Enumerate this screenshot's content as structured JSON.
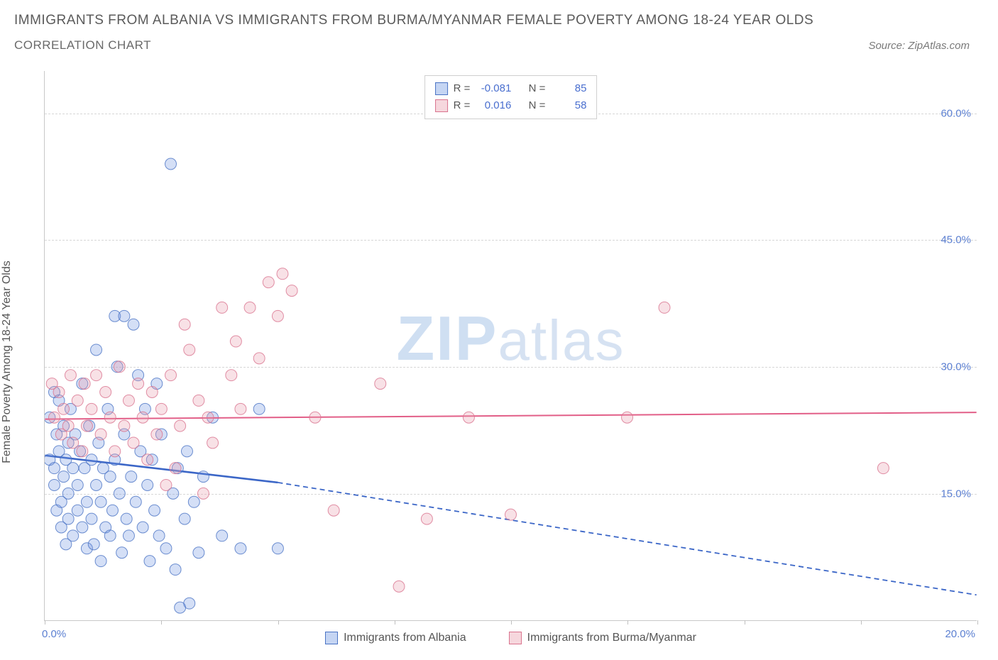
{
  "title": "IMMIGRANTS FROM ALBANIA VS IMMIGRANTS FROM BURMA/MYANMAR FEMALE POVERTY AMONG 18-24 YEAR OLDS",
  "subtitle": "CORRELATION CHART",
  "source_label": "Source: ZipAtlas.com",
  "y_axis_label": "Female Poverty Among 18-24 Year Olds",
  "watermark_part1": "ZIP",
  "watermark_part2": "atlas",
  "chart": {
    "type": "scatter",
    "background_color": "#ffffff",
    "grid_color": "#d7d7d7",
    "axis_color": "#c8c8c8",
    "tick_font_color": "#5b7fd1",
    "tick_fontsize": 15,
    "xlim": [
      0,
      20
    ],
    "ylim": [
      0,
      65
    ],
    "x_ticks": [
      0,
      2.5,
      5,
      7.5,
      10,
      12.5,
      15,
      17.5,
      20
    ],
    "x_tick_labels": {
      "0": "0.0%",
      "20": "20.0%"
    },
    "y_ticks": [
      15,
      30,
      45,
      60
    ],
    "y_tick_labels": {
      "15": "15.0%",
      "30": "30.0%",
      "45": "45.0%",
      "60": "60.0%"
    },
    "marker_radius": 8,
    "series": [
      {
        "key": "albania",
        "label": "Immigrants from Albania",
        "fill_color": "#6f96e0",
        "stroke_color": "#4a73c4",
        "R_label": "R =",
        "N_label": "N =",
        "R": "-0.081",
        "N": "85",
        "trend": {
          "solid": {
            "x1": 0,
            "y1": 19.5,
            "x2": 5,
            "y2": 16.3
          },
          "dashed": {
            "x1": 5,
            "y1": 16.3,
            "x2": 20,
            "y2": 3.0
          },
          "color": "#3b66c7",
          "width": 2.5,
          "dash": "7,5"
        },
        "points": [
          [
            0.1,
            19
          ],
          [
            0.1,
            24
          ],
          [
            0.2,
            27
          ],
          [
            0.2,
            18
          ],
          [
            0.2,
            16
          ],
          [
            0.25,
            22
          ],
          [
            0.25,
            13
          ],
          [
            0.3,
            20
          ],
          [
            0.3,
            26
          ],
          [
            0.35,
            14
          ],
          [
            0.35,
            11
          ],
          [
            0.4,
            23
          ],
          [
            0.4,
            17
          ],
          [
            0.45,
            19
          ],
          [
            0.45,
            9
          ],
          [
            0.5,
            21
          ],
          [
            0.5,
            15
          ],
          [
            0.5,
            12
          ],
          [
            0.55,
            25
          ],
          [
            0.6,
            18
          ],
          [
            0.6,
            10
          ],
          [
            0.65,
            22
          ],
          [
            0.7,
            16
          ],
          [
            0.7,
            13
          ],
          [
            0.75,
            20
          ],
          [
            0.8,
            28
          ],
          [
            0.8,
            11
          ],
          [
            0.85,
            18
          ],
          [
            0.9,
            14
          ],
          [
            0.9,
            8.5
          ],
          [
            0.95,
            23
          ],
          [
            1.0,
            19
          ],
          [
            1.0,
            12
          ],
          [
            1.05,
            9
          ],
          [
            1.1,
            16
          ],
          [
            1.1,
            32
          ],
          [
            1.15,
            21
          ],
          [
            1.2,
            14
          ],
          [
            1.2,
            7
          ],
          [
            1.25,
            18
          ],
          [
            1.3,
            11
          ],
          [
            1.35,
            25
          ],
          [
            1.4,
            17
          ],
          [
            1.4,
            10
          ],
          [
            1.45,
            13
          ],
          [
            1.5,
            36
          ],
          [
            1.5,
            19
          ],
          [
            1.55,
            30
          ],
          [
            1.6,
            15
          ],
          [
            1.65,
            8
          ],
          [
            1.7,
            36
          ],
          [
            1.7,
            22
          ],
          [
            1.75,
            12
          ],
          [
            1.8,
            10
          ],
          [
            1.85,
            17
          ],
          [
            1.9,
            35
          ],
          [
            1.95,
            14
          ],
          [
            2.0,
            29
          ],
          [
            2.05,
            20
          ],
          [
            2.1,
            11
          ],
          [
            2.15,
            25
          ],
          [
            2.2,
            16
          ],
          [
            2.25,
            7
          ],
          [
            2.3,
            19
          ],
          [
            2.35,
            13
          ],
          [
            2.4,
            28
          ],
          [
            2.45,
            10
          ],
          [
            2.5,
            22
          ],
          [
            2.6,
            8.5
          ],
          [
            2.7,
            54
          ],
          [
            2.75,
            15
          ],
          [
            2.8,
            6
          ],
          [
            2.85,
            18
          ],
          [
            2.9,
            1.5
          ],
          [
            3.0,
            12
          ],
          [
            3.05,
            20
          ],
          [
            3.1,
            2
          ],
          [
            3.2,
            14
          ],
          [
            3.3,
            8
          ],
          [
            3.4,
            17
          ],
          [
            3.6,
            24
          ],
          [
            3.8,
            10
          ],
          [
            4.2,
            8.5
          ],
          [
            4.6,
            25
          ],
          [
            5.0,
            8.5
          ]
        ]
      },
      {
        "key": "burma",
        "label": "Immigrants from Burma/Myanmar",
        "fill_color": "#e89aab",
        "stroke_color": "#d9738e",
        "R_label": "R =",
        "N_label": "N =",
        "R": "0.016",
        "N": "58",
        "trend": {
          "solid": {
            "x1": 0,
            "y1": 23.8,
            "x2": 20,
            "y2": 24.6
          },
          "dashed": null,
          "color": "#e25f88",
          "width": 2,
          "dash": null
        },
        "points": [
          [
            0.15,
            28
          ],
          [
            0.2,
            24
          ],
          [
            0.3,
            27
          ],
          [
            0.35,
            22
          ],
          [
            0.4,
            25
          ],
          [
            0.5,
            23
          ],
          [
            0.55,
            29
          ],
          [
            0.6,
            21
          ],
          [
            0.7,
            26
          ],
          [
            0.8,
            20
          ],
          [
            0.85,
            28
          ],
          [
            0.9,
            23
          ],
          [
            1.0,
            25
          ],
          [
            1.1,
            29
          ],
          [
            1.2,
            22
          ],
          [
            1.3,
            27
          ],
          [
            1.4,
            24
          ],
          [
            1.5,
            20
          ],
          [
            1.6,
            30
          ],
          [
            1.7,
            23
          ],
          [
            1.8,
            26
          ],
          [
            1.9,
            21
          ],
          [
            2.0,
            28
          ],
          [
            2.1,
            24
          ],
          [
            2.2,
            19
          ],
          [
            2.3,
            27
          ],
          [
            2.4,
            22
          ],
          [
            2.5,
            25
          ],
          [
            2.6,
            16
          ],
          [
            2.7,
            29
          ],
          [
            2.8,
            18
          ],
          [
            2.9,
            23
          ],
          [
            3.0,
            35
          ],
          [
            3.1,
            32
          ],
          [
            3.3,
            26
          ],
          [
            3.4,
            15
          ],
          [
            3.5,
            24
          ],
          [
            3.6,
            21
          ],
          [
            3.8,
            37
          ],
          [
            4.0,
            29
          ],
          [
            4.1,
            33
          ],
          [
            4.2,
            25
          ],
          [
            4.4,
            37
          ],
          [
            4.6,
            31
          ],
          [
            4.8,
            40
          ],
          [
            5.0,
            36
          ],
          [
            5.1,
            41
          ],
          [
            5.3,
            39
          ],
          [
            5.8,
            24
          ],
          [
            6.2,
            13
          ],
          [
            7.2,
            28
          ],
          [
            7.6,
            4
          ],
          [
            8.2,
            12
          ],
          [
            9.1,
            24
          ],
          [
            10.0,
            12.5
          ],
          [
            12.5,
            24
          ],
          [
            13.3,
            37
          ],
          [
            18.0,
            18
          ]
        ]
      }
    ]
  }
}
